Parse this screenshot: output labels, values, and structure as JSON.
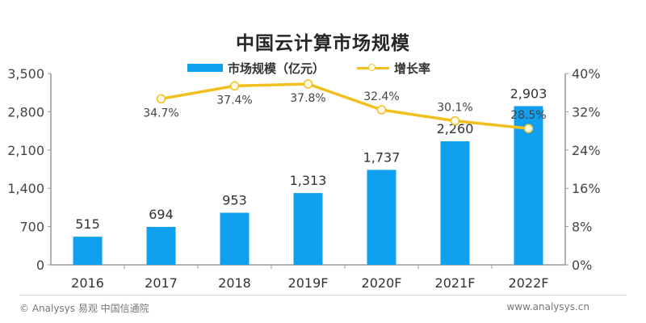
{
  "title": "中国云计算市场规模",
  "legend": {
    "bar_label": "市场规模（亿元）",
    "line_label": "增长率"
  },
  "colors": {
    "bar": "#0fa0f0",
    "line": "#f2c01e",
    "marker_fill": "#fffbe6",
    "axis": "#999999",
    "text": "#333333"
  },
  "footer": {
    "left": "© Analysys 易观 中国信通院",
    "right": "www.analysys.cn"
  },
  "chart_data": {
    "type": "bar",
    "title": "中国云计算市场规模",
    "categories": [
      "2016",
      "2017",
      "2018",
      "2019F",
      "2020F",
      "2021F",
      "2022F"
    ],
    "series": [
      {
        "name": "市场规模（亿元）",
        "type": "bar",
        "axis": "left",
        "values": [
          515,
          694,
          953,
          1313,
          1737,
          2260,
          2903
        ],
        "labels": [
          "515",
          "694",
          "953",
          "1,313",
          "1,737",
          "2,260",
          "2,903"
        ]
      },
      {
        "name": "增长率",
        "type": "line",
        "axis": "right",
        "values": [
          null,
          34.7,
          37.4,
          37.8,
          32.4,
          30.1,
          28.5
        ],
        "labels": [
          "",
          "34.7%",
          "37.4%",
          "37.8%",
          "32.4%",
          "30.1%",
          "28.5%"
        ]
      }
    ],
    "left_axis": {
      "ylim": [
        0,
        3500
      ],
      "ticks": [
        0,
        700,
        1400,
        2100,
        2800,
        3500
      ],
      "tick_labels": [
        "0",
        "700",
        "1,400",
        "2,100",
        "2,800",
        "3,500"
      ]
    },
    "right_axis": {
      "ylim": [
        0,
        40
      ],
      "ticks": [
        0,
        8,
        16,
        24,
        32,
        40
      ],
      "tick_labels": [
        "0%",
        "8%",
        "16%",
        "24%",
        "32%",
        "40%"
      ]
    },
    "xlabel": "",
    "ylabel": "",
    "grid": false,
    "legend_position": "top"
  }
}
